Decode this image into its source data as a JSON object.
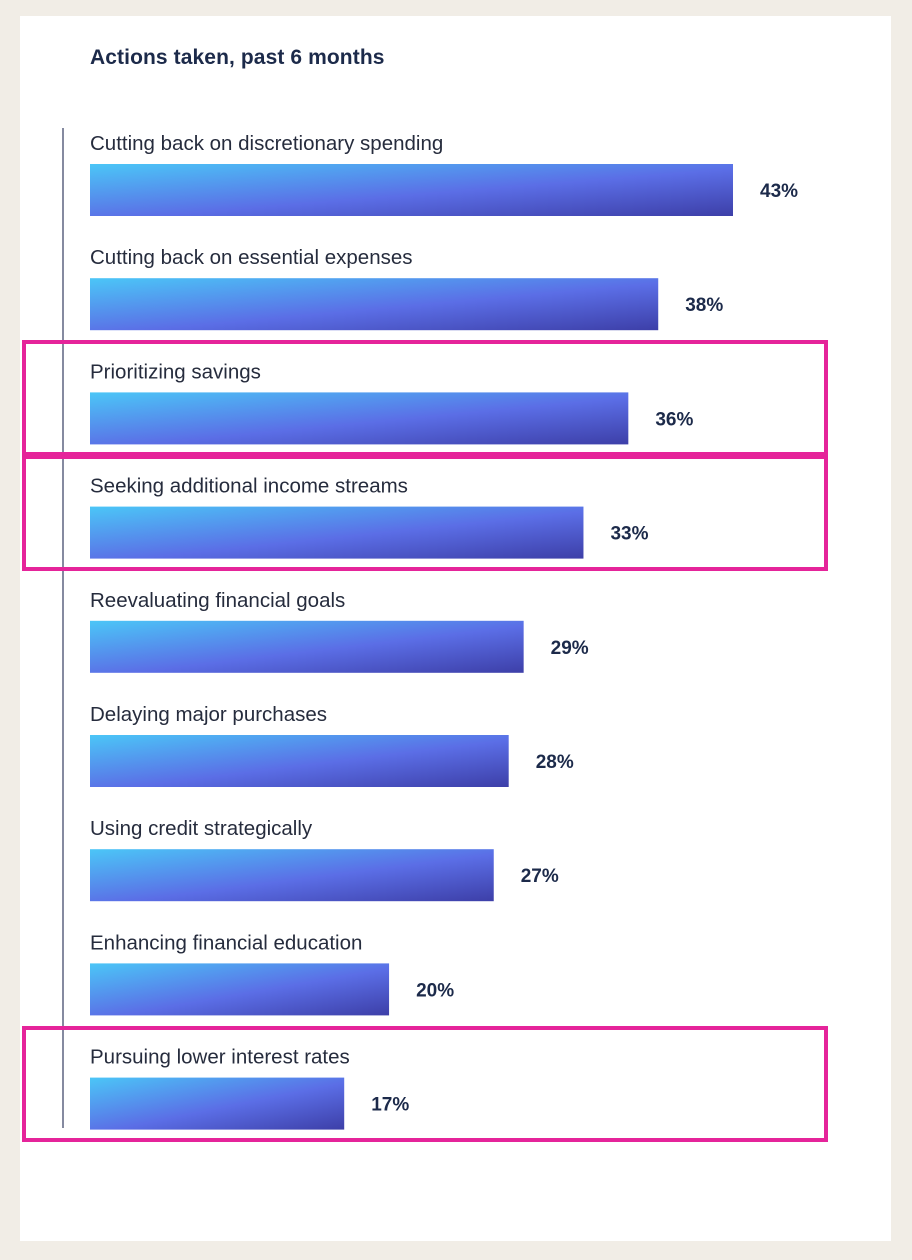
{
  "chart_data": {
    "type": "bar",
    "orientation": "horizontal",
    "title": "Actions taken, past 6 months",
    "categories": [
      "Cutting back on discretionary spending",
      "Cutting back on essential expenses",
      "Prioritizing savings",
      "Seeking additional income streams",
      "Reevaluating financial goals",
      "Delaying major purchases",
      "Using credit strategically",
      "Enhancing financial education",
      "Pursuing lower interest rates"
    ],
    "values": [
      43,
      38,
      36,
      33,
      29,
      28,
      27,
      20,
      17
    ],
    "value_labels": [
      "43%",
      "38%",
      "36%",
      "33%",
      "29%",
      "28%",
      "27%",
      "20%",
      "17%"
    ],
    "highlighted": [
      false,
      false,
      true,
      true,
      false,
      false,
      false,
      false,
      true
    ],
    "xlim": [
      0,
      43
    ],
    "grid": false,
    "legend": "none",
    "colors": {
      "bar_gradient_start": "#4bc6f7",
      "bar_gradient_mid": "#5b6ee6",
      "bar_gradient_end": "#3d3fa8",
      "highlight": "#e5249a",
      "background": "#f1ede6",
      "axis_line": "#5d6480"
    }
  }
}
